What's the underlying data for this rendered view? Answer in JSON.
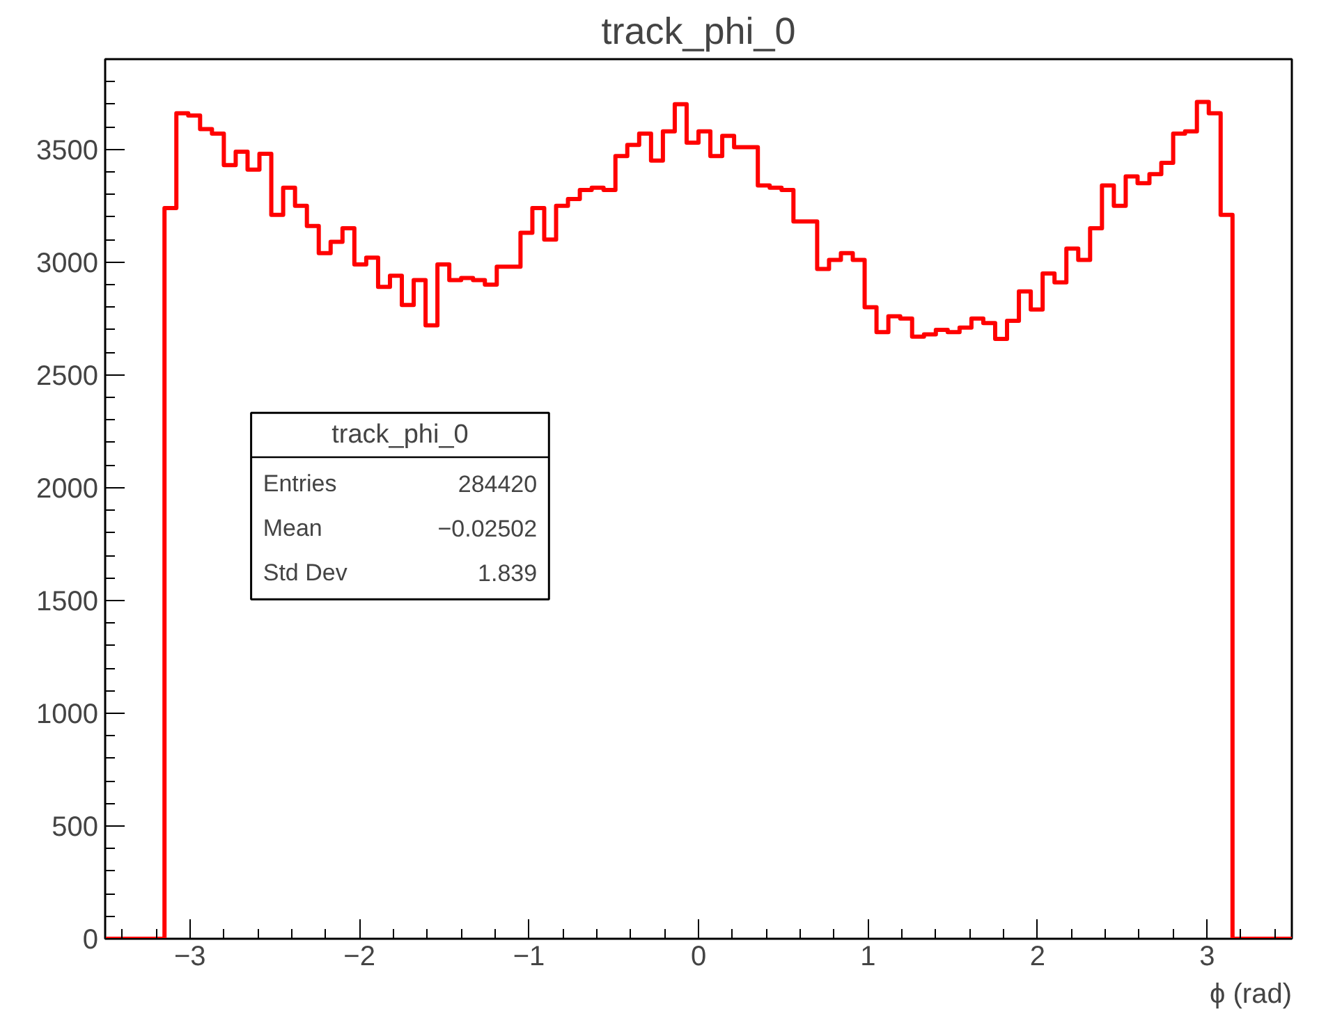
{
  "chart_data": {
    "type": "histogram",
    "title": "track_phi_0",
    "xlabel": "ϕ (rad)",
    "bins": [
      -3.5,
      -3.43,
      -3.36,
      -3.29,
      -3.22,
      -3.15,
      -3.08,
      -3.01,
      -2.94,
      -2.87,
      -2.8,
      -2.73,
      -2.66,
      -2.59,
      -2.52,
      -2.45,
      -2.38,
      -2.31,
      -2.24,
      -2.17,
      -2.1,
      -2.03,
      -1.96,
      -1.89,
      -1.82,
      -1.75,
      -1.68,
      -1.61,
      -1.54,
      -1.47,
      -1.4,
      -1.33,
      -1.26,
      -1.19,
      -1.12,
      -1.05,
      -0.98,
      -0.91,
      -0.84,
      -0.77,
      -0.7,
      -0.63,
      -0.56,
      -0.49,
      -0.42,
      -0.35,
      -0.28,
      -0.21,
      -0.14,
      -0.07,
      0,
      0.07,
      0.14,
      0.21,
      0.28,
      0.35,
      0.42,
      0.49,
      0.56,
      0.63,
      0.7,
      0.77,
      0.84,
      0.91,
      0.98,
      1.05,
      1.12,
      1.19,
      1.26,
      1.33,
      1.4,
      1.47,
      1.54,
      1.61,
      1.68,
      1.75,
      1.82,
      1.89,
      1.96,
      2.03,
      2.1,
      2.17,
      2.24,
      2.31,
      2.38,
      2.45,
      2.52,
      2.59,
      2.66,
      2.73,
      2.8,
      2.87,
      2.94,
      3.01,
      3.08,
      3.15,
      3.22,
      3.29,
      3.36,
      3.43,
      3.5
    ],
    "values": [
      0,
      0,
      0,
      0,
      0,
      3240,
      3660,
      3650,
      3590,
      3570,
      3430,
      3490,
      3410,
      3480,
      3210,
      3330,
      3250,
      3160,
      3040,
      3090,
      3150,
      2990,
      3020,
      2890,
      2940,
      2810,
      2920,
      2720,
      2990,
      2920,
      2930,
      2920,
      2900,
      2980,
      2980,
      3130,
      3240,
      3100,
      3250,
      3280,
      3320,
      3330,
      3320,
      3470,
      3520,
      3570,
      3450,
      3580,
      3700,
      3530,
      3580,
      3470,
      3560,
      3510,
      3510,
      3340,
      3330,
      3320,
      3180,
      3180,
      2970,
      3010,
      3040,
      3010,
      2800,
      2690,
      2760,
      2750,
      2670,
      2680,
      2700,
      2690,
      2710,
      2750,
      2730,
      2660,
      2740,
      2870,
      2790,
      2950,
      2910,
      3060,
      3010,
      3150,
      3340,
      3250,
      3380,
      3350,
      3390,
      3440,
      3570,
      3580,
      3710,
      3660,
      3210,
      0,
      0,
      0,
      0,
      0
    ],
    "color": "#ff0000",
    "xlim": [
      -3.5,
      3.5
    ],
    "ylim": [
      0,
      3900
    ],
    "xticks": [
      {
        "value": -3,
        "label": "−3"
      },
      {
        "value": -2,
        "label": "−2"
      },
      {
        "value": -1,
        "label": "−1"
      },
      0,
      1,
      2,
      3
    ],
    "yticks": [
      0,
      500,
      1000,
      1500,
      2000,
      2500,
      3000,
      3500
    ],
    "grid": false,
    "annotations": [
      "track_phi_0",
      "Entries 284420",
      "Mean −0.02502",
      "Std Dev 1.839"
    ]
  }
}
